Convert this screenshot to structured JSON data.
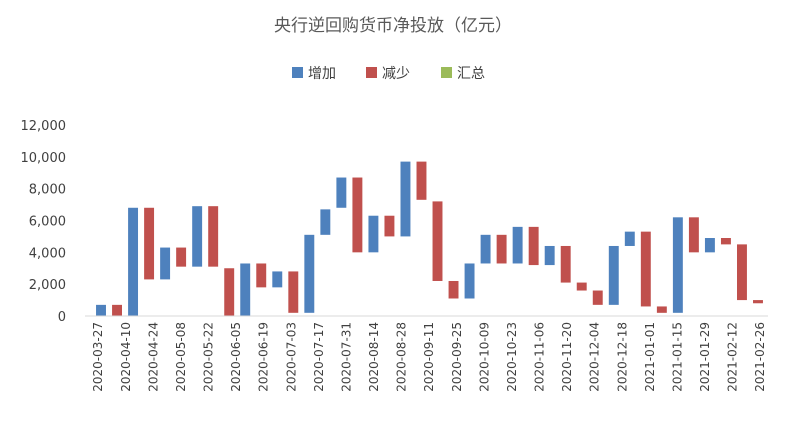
{
  "chart_data": {
    "type": "bar",
    "subtype": "waterfall",
    "title": "央行逆回购货币净投放（亿元）",
    "legend": [
      "增加",
      "减少",
      "汇总"
    ],
    "legend_position": "top",
    "colors": {
      "增加": "#4e81bd",
      "减少": "#c0504d",
      "汇总": "#9bbb59"
    },
    "ylim": [
      0,
      12000
    ],
    "yticks": [
      "0",
      "2,000",
      "4,000",
      "6,000",
      "8,000",
      "10,000",
      "12,000"
    ],
    "grid": false,
    "x_tick_labels": [
      "2020-03-27",
      "2020-04-10",
      "2020-04-24",
      "2020-05-08",
      "2020-05-22",
      "2020-06-05",
      "2020-06-19",
      "2020-07-03",
      "2020-07-17",
      "2020-07-31",
      "2020-08-14",
      "2020-08-28",
      "2020-09-11",
      "2020-09-25",
      "2020-10-09",
      "2020-10-23",
      "2020-11-06",
      "2020-11-20",
      "2020-12-04",
      "2020-12-18",
      "2021-01-01",
      "2021-01-15",
      "2021-01-29",
      "2021-02-12",
      "2021-02-26"
    ],
    "bars": [
      {
        "series": "增加",
        "low": 0,
        "high": 700
      },
      {
        "series": "减少",
        "low": 0,
        "high": 700
      },
      {
        "series": "增加",
        "low": 0,
        "high": 6800
      },
      {
        "series": "减少",
        "low": 2300,
        "high": 6800
      },
      {
        "series": "增加",
        "low": 2300,
        "high": 4300
      },
      {
        "series": "减少",
        "low": 3100,
        "high": 4300
      },
      {
        "series": "增加",
        "low": 3100,
        "high": 6900
      },
      {
        "series": "减少",
        "low": 3100,
        "high": 6900
      },
      {
        "series": "减少",
        "low": 0,
        "high": 3000
      },
      {
        "series": "增加",
        "low": 0,
        "high": 3300
      },
      {
        "series": "减少",
        "low": 1800,
        "high": 3300
      },
      {
        "series": "增加",
        "low": 1800,
        "high": 2800
      },
      {
        "series": "减少",
        "low": 200,
        "high": 2800
      },
      {
        "series": "增加",
        "low": 200,
        "high": 5100
      },
      {
        "series": "增加",
        "low": 5100,
        "high": 6700
      },
      {
        "series": "增加",
        "low": 6800,
        "high": 8700
      },
      {
        "series": "减少",
        "low": 4000,
        "high": 8700
      },
      {
        "series": "增加",
        "low": 4000,
        "high": 6300
      },
      {
        "series": "减少",
        "low": 5000,
        "high": 6300
      },
      {
        "series": "增加",
        "low": 5000,
        "high": 9700
      },
      {
        "series": "减少",
        "low": 7300,
        "high": 9700
      },
      {
        "series": "减少",
        "low": 2200,
        "high": 7200
      },
      {
        "series": "减少",
        "low": 1100,
        "high": 2200
      },
      {
        "series": "增加",
        "low": 1100,
        "high": 3300
      },
      {
        "series": "增加",
        "low": 3300,
        "high": 5100
      },
      {
        "series": "减少",
        "low": 3300,
        "high": 5100
      },
      {
        "series": "增加",
        "low": 3300,
        "high": 5600
      },
      {
        "series": "减少",
        "low": 3200,
        "high": 5600
      },
      {
        "series": "增加",
        "low": 3200,
        "high": 4400
      },
      {
        "series": "减少",
        "low": 2100,
        "high": 4400
      },
      {
        "series": "减少",
        "low": 1600,
        "high": 2100
      },
      {
        "series": "减少",
        "low": 700,
        "high": 1600
      },
      {
        "series": "增加",
        "low": 700,
        "high": 4400
      },
      {
        "series": "增加",
        "low": 4400,
        "high": 5300
      },
      {
        "series": "减少",
        "low": 600,
        "high": 5300
      },
      {
        "series": "减少",
        "low": 200,
        "high": 600
      },
      {
        "series": "增加",
        "low": 200,
        "high": 6200
      },
      {
        "series": "减少",
        "low": 4000,
        "high": 6200
      },
      {
        "series": "增加",
        "low": 4000,
        "high": 4900
      },
      {
        "series": "减少",
        "low": 4500,
        "high": 4900
      },
      {
        "series": "减少",
        "low": 1000,
        "high": 4500
      },
      {
        "series": "减少",
        "low": 800,
        "high": 1000
      }
    ]
  }
}
